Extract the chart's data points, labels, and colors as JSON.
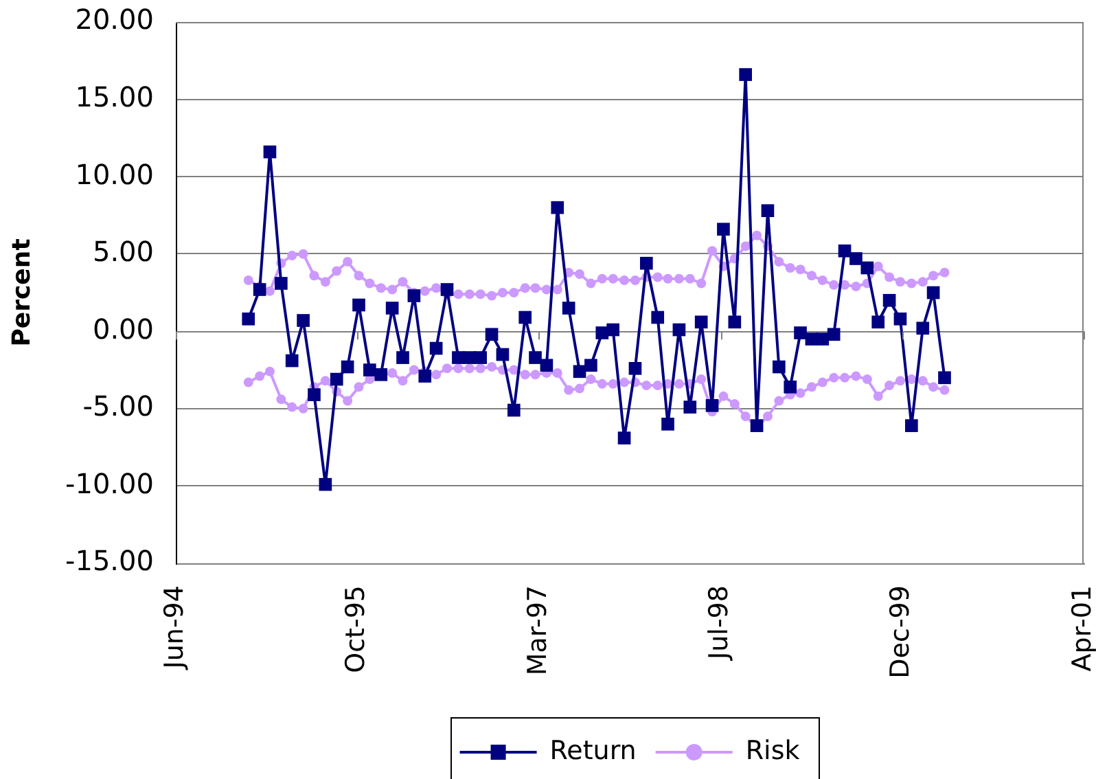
{
  "chart_data": {
    "type": "line",
    "ylabel": "Percent",
    "x": [
      "1995-01",
      "1995-02",
      "1995-03",
      "1995-04",
      "1995-05",
      "1995-06",
      "1995-07",
      "1995-08",
      "1995-09",
      "1995-10",
      "1995-11",
      "1995-12",
      "1996-01",
      "1996-02",
      "1996-03",
      "1996-04",
      "1996-05",
      "1996-06",
      "1996-07",
      "1996-08",
      "1996-09",
      "1996-10",
      "1996-11",
      "1996-12",
      "1997-01",
      "1997-02",
      "1997-03",
      "1997-04",
      "1997-05",
      "1997-06",
      "1997-07",
      "1997-08",
      "1997-09",
      "1997-10",
      "1997-11",
      "1997-12",
      "1998-01",
      "1998-02",
      "1998-03",
      "1998-04",
      "1998-05",
      "1998-06",
      "1998-07",
      "1998-08",
      "1998-09",
      "1998-10",
      "1998-11",
      "1998-12",
      "1999-01",
      "1999-02",
      "1999-03",
      "1999-04",
      "1999-05",
      "1999-06",
      "1999-07",
      "1999-08",
      "1999-09",
      "1999-10",
      "1999-11",
      "1999-12",
      "2000-01",
      "2000-02",
      "2000-03",
      "2000-04"
    ],
    "xlim": [
      "1994-06-15",
      "2001-04-19"
    ],
    "xticks": [
      {
        "value": "1994-06-15",
        "label": "Jun-94"
      },
      {
        "value": "1995-10-28",
        "label": "Oct-95"
      },
      {
        "value": "1997-03-11",
        "label": "Mar-97"
      },
      {
        "value": "1998-07-24",
        "label": "Jul-98"
      },
      {
        "value": "1999-12-06",
        "label": "Dec-99"
      },
      {
        "value": "2001-04-19",
        "label": "Apr-01"
      }
    ],
    "ylim": [
      -15,
      20
    ],
    "yticks": [
      {
        "value": -15,
        "label": "-15.00"
      },
      {
        "value": -10,
        "label": "-10.00"
      },
      {
        "value": -5,
        "label": "-5.00"
      },
      {
        "value": 0,
        "label": "0.00"
      },
      {
        "value": 5,
        "label": "5.00"
      },
      {
        "value": 10,
        "label": "10.00"
      },
      {
        "value": 15,
        "label": "15.00"
      },
      {
        "value": 20,
        "label": "20.00"
      }
    ],
    "grid": "y",
    "legend": "bottom",
    "line_style": "solid",
    "series": [
      {
        "name": "Return",
        "color": "#000080",
        "marker": "square",
        "values": [
          0.8,
          2.7,
          11.6,
          3.1,
          -1.9,
          0.7,
          -4.1,
          -9.9,
          -3.1,
          -2.3,
          1.7,
          -2.5,
          -2.8,
          1.5,
          -1.7,
          2.3,
          -2.9,
          -1.1,
          2.7,
          -1.7,
          -1.7,
          -1.7,
          -0.2,
          -1.5,
          -5.1,
          0.9,
          -1.7,
          -2.2,
          8.0,
          1.5,
          -2.6,
          -2.2,
          -0.1,
          0.1,
          -6.9,
          -2.4,
          4.4,
          0.9,
          -6.0,
          0.1,
          -4.9,
          0.6,
          -4.8,
          6.6,
          0.6,
          16.6,
          -6.1,
          7.8,
          -2.3,
          -3.6,
          -0.1,
          -0.5,
          -0.5,
          -0.2,
          5.2,
          4.7,
          4.1,
          0.6,
          2.0,
          0.8,
          -6.1,
          0.2,
          2.5,
          -3.0
        ]
      },
      {
        "name": "Risk",
        "color": "#cc99ff",
        "marker": "circle",
        "values": [
          3.3,
          2.9,
          2.6,
          4.4,
          4.9,
          5.0,
          3.6,
          3.2,
          3.9,
          4.5,
          3.6,
          3.1,
          2.8,
          2.7,
          3.2,
          2.5,
          2.6,
          2.8,
          2.4,
          2.4,
          2.4,
          2.4,
          2.3,
          2.5,
          2.5,
          2.8,
          2.8,
          2.7,
          2.7,
          3.8,
          3.7,
          3.1,
          3.4,
          3.4,
          3.3,
          3.3,
          3.5,
          3.5,
          3.4,
          3.4,
          3.4,
          3.1,
          5.2,
          4.2,
          4.7,
          5.5,
          6.2,
          5.5,
          4.5,
          4.1,
          4.0,
          3.6,
          3.3,
          3.0,
          3.0,
          2.9,
          3.1,
          4.2,
          3.5,
          3.2,
          3.1,
          3.2,
          3.6,
          3.8
        ]
      },
      {
        "color": "#cc99ff",
        "marker": "circle",
        "values": [
          -3.3,
          -2.9,
          -2.6,
          -4.4,
          -4.9,
          -5.0,
          -3.6,
          -3.2,
          -3.9,
          -4.5,
          -3.6,
          -3.1,
          -2.8,
          -2.7,
          -3.2,
          -2.5,
          -2.6,
          -2.8,
          -2.4,
          -2.4,
          -2.4,
          -2.4,
          -2.3,
          -2.5,
          -2.5,
          -2.8,
          -2.8,
          -2.7,
          -2.7,
          -3.8,
          -3.7,
          -3.1,
          -3.4,
          -3.4,
          -3.3,
          -3.3,
          -3.5,
          -3.5,
          -3.4,
          -3.4,
          -3.4,
          -3.1,
          -5.2,
          -4.2,
          -4.7,
          -5.5,
          -6.2,
          -5.5,
          -4.5,
          -4.1,
          -4.0,
          -3.6,
          -3.3,
          -3.0,
          -3.0,
          -2.9,
          -3.1,
          -4.2,
          -3.5,
          -3.2,
          -3.1,
          -3.2,
          -3.6,
          -3.8
        ]
      }
    ]
  }
}
